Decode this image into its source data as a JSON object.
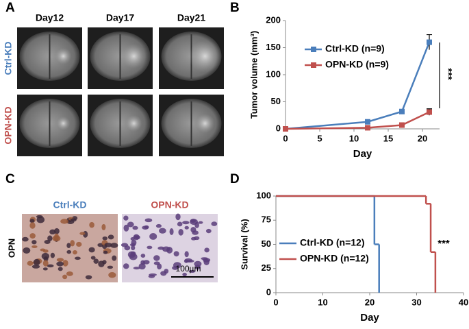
{
  "panels": {
    "labels": [
      "A",
      "B",
      "C",
      "D"
    ]
  },
  "panel_a": {
    "columns": [
      "Day12",
      "Day17",
      "Day21"
    ],
    "rows": [
      "Ctrl-KD",
      "OPN-KD"
    ]
  },
  "panel_c": {
    "columns": [
      "Ctrl-KD",
      "OPN-KD"
    ],
    "row": "OPN",
    "scale_bar": "100µm"
  },
  "chart_data": [
    {
      "type": "line",
      "x_label": "Day",
      "y_label": "Tumor volume (mm³)",
      "x": [
        0,
        12,
        17,
        21
      ],
      "series": [
        {
          "name": "Ctrl-KD (n=9)",
          "color": "#4a7ebb",
          "values": [
            0,
            13,
            32,
            160
          ],
          "errors": [
            0,
            2,
            3,
            14
          ]
        },
        {
          "name": "OPN-KD (n=9)",
          "color": "#c0504d",
          "values": [
            0,
            2,
            7,
            31
          ],
          "errors": [
            0,
            1,
            2,
            6
          ]
        }
      ],
      "xlim": [
        0,
        22.5
      ],
      "xticks": [
        0,
        5,
        10,
        15,
        20
      ],
      "ylim": [
        0,
        200
      ],
      "yticks": [
        0,
        50,
        100,
        150,
        200
      ],
      "legend": "upper left",
      "annotation": "***"
    },
    {
      "type": "step",
      "x_label": "Day",
      "y_label": "Survival (%)",
      "series": [
        {
          "name": "Ctrl-KD (n=12)",
          "color": "#4a7ebb",
          "x": [
            0,
            21,
            22
          ],
          "values": [
            100,
            50,
            0
          ]
        },
        {
          "name": "OPN-KD (n=12)",
          "color": "#c0504d",
          "x": [
            0,
            32,
            33,
            34
          ],
          "values": [
            100,
            92,
            42,
            0
          ]
        }
      ],
      "xlim": [
        0,
        40
      ],
      "xticks": [
        0,
        10,
        20,
        30,
        40
      ],
      "ylim": [
        0,
        100
      ],
      "yticks": [
        0,
        25,
        50,
        75,
        100
      ],
      "legend": "lower left",
      "annotation": "***"
    }
  ]
}
